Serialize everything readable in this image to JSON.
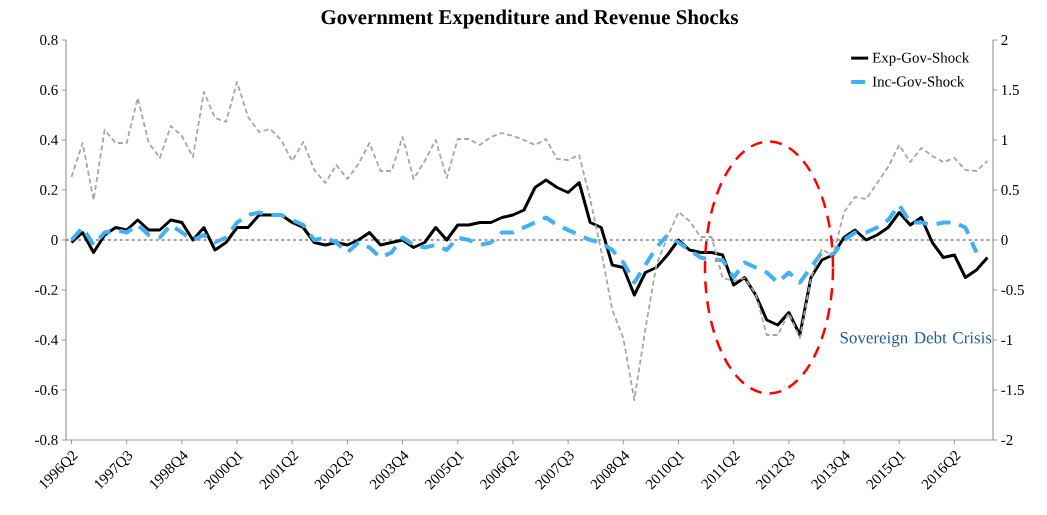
{
  "chart_data": {
    "type": "line",
    "title": "Government Expenditure and Revenue Shocks",
    "categories": [
      "1996Q2",
      null,
      null,
      null,
      null,
      "1997Q3",
      null,
      null,
      null,
      null,
      "1998Q4",
      null,
      null,
      null,
      null,
      "2000Q1",
      null,
      null,
      null,
      null,
      "2001Q2",
      null,
      null,
      null,
      null,
      "2002Q3",
      null,
      null,
      null,
      null,
      "2003Q4",
      null,
      null,
      null,
      null,
      "2005Q1",
      null,
      null,
      null,
      null,
      "2006Q2",
      null,
      null,
      null,
      null,
      "2007Q3",
      null,
      null,
      null,
      null,
      "2008Q4",
      null,
      null,
      null,
      null,
      "2010Q1",
      null,
      null,
      null,
      null,
      "2011Q2",
      null,
      null,
      null,
      null,
      "2012Q3",
      null,
      null,
      null,
      null,
      "2013Q4",
      null,
      null,
      null,
      null,
      "2015Q1",
      null,
      null,
      null,
      null,
      "2016Q2",
      null,
      null,
      null
    ],
    "series": [
      {
        "name": "Exp-Gov-Shock",
        "color": "#000000",
        "line_style": "solid",
        "values": [
          -0.01,
          0.03,
          -0.05,
          0.02,
          0.05,
          0.04,
          0.08,
          0.04,
          0.04,
          0.08,
          0.07,
          0,
          0.05,
          -0.04,
          -0.01,
          0.05,
          0.05,
          0.1,
          0.1,
          0.1,
          0.07,
          0.05,
          -0.01,
          -0.02,
          -0.01,
          -0.02,
          0,
          0.03,
          -0.02,
          -0.01,
          0,
          -0.03,
          -0.01,
          0.05,
          0,
          0.06,
          0.06,
          0.07,
          0.07,
          0.09,
          0.1,
          0.12,
          0.21,
          0.24,
          0.21,
          0.19,
          0.23,
          0.07,
          0.05,
          -0.1,
          -0.11,
          -0.22,
          -0.13,
          -0.11,
          -0.06,
          0,
          -0.04,
          -0.05,
          -0.05,
          -0.06,
          -0.18,
          -0.15,
          -0.22,
          -0.32,
          -0.34,
          -0.29,
          -0.38,
          -0.15,
          -0.08,
          -0.06,
          0.01,
          0.04,
          0,
          0.02,
          0.05,
          0.11,
          0.06,
          0.09,
          -0.01,
          -0.07,
          -0.06,
          -0.15,
          -0.12,
          -0.07
        ]
      },
      {
        "name": "Inc-Gov-Shock",
        "color": "#41b0f5",
        "line_style": "dashed",
        "values": [
          0,
          0.05,
          -0.02,
          0.03,
          0.04,
          0.03,
          0.06,
          0.02,
          0.01,
          0.06,
          0.03,
          0,
          0.02,
          -0.01,
          0.01,
          0.07,
          0.1,
          0.11,
          0.1,
          0.1,
          0.08,
          0.06,
          0,
          0.01,
          -0.01,
          -0.05,
          -0.01,
          -0.03,
          -0.07,
          -0.05,
          0.01,
          -0.02,
          -0.03,
          -0.02,
          -0.04,
          0.01,
          0,
          -0.02,
          -0.01,
          0.03,
          0.03,
          0.05,
          0.07,
          0.09,
          0.06,
          0.04,
          0.02,
          0,
          -0.01,
          -0.04,
          -0.09,
          -0.17,
          -0.1,
          -0.03,
          0.02,
          -0.01,
          -0.04,
          -0.07,
          -0.08,
          -0.08,
          -0.15,
          -0.09,
          -0.11,
          -0.13,
          -0.17,
          -0.13,
          -0.17,
          -0.11,
          -0.05,
          -0.06,
          0,
          0.03,
          0.03,
          0.05,
          0.08,
          0.14,
          0.07,
          0.07,
          0.06,
          0.07,
          0.07,
          0.05,
          -0.05,
          null
        ]
      },
      {
        "color": "#a6a6a6",
        "line_style": "dashed",
        "axis": "y2",
        "values": [
          0.63,
          0.97,
          0.4,
          1.1,
          0.97,
          0.97,
          1.42,
          0.97,
          0.82,
          1.14,
          1.04,
          0.83,
          1.48,
          1.22,
          1.18,
          1.58,
          1.23,
          1.08,
          1.11,
          1,
          0.79,
          0.98,
          0.7,
          0.57,
          0.75,
          0.61,
          0.76,
          0.97,
          0.69,
          0.69,
          1.03,
          0.61,
          0.79,
          1,
          0.62,
          1.01,
          1.01,
          0.95,
          1.03,
          1.07,
          1.04,
          1,
          0.95,
          1.01,
          0.81,
          0.8,
          0.85,
          0.41,
          -0.11,
          -0.7,
          -0.98,
          -1.6,
          -0.89,
          -0.25,
          0.03,
          0.28,
          0.19,
          0.03,
          0.03,
          -0.38,
          -0.41,
          -0.38,
          -0.54,
          -0.95,
          -0.95,
          -0.73,
          -0.98,
          -0.38,
          -0.09,
          -0.16,
          0.28,
          0.43,
          0.41,
          0.57,
          0.73,
          0.95,
          0.78,
          0.92,
          0.84,
          0.78,
          0.82,
          0.7,
          0.69,
          0.79
        ]
      }
    ],
    "ylim": [
      -0.8,
      0.8
    ],
    "yticks": [
      -0.8,
      -0.6,
      -0.4,
      -0.2,
      0,
      0.2,
      0.4,
      0.6,
      0.8
    ],
    "y2lim": [
      -2,
      2
    ],
    "y2ticks": [
      -2,
      -1.5,
      -1,
      -0.5,
      0,
      0.5,
      1,
      1.5,
      2
    ],
    "ref_lines": [
      {
        "axis": "y",
        "value": 0,
        "color": "#808080",
        "line_style": "dashed"
      }
    ],
    "annotations": [
      "Sovereign Debt Crisis"
    ],
    "legend": "top right",
    "grid": false,
    "marker": "none"
  }
}
